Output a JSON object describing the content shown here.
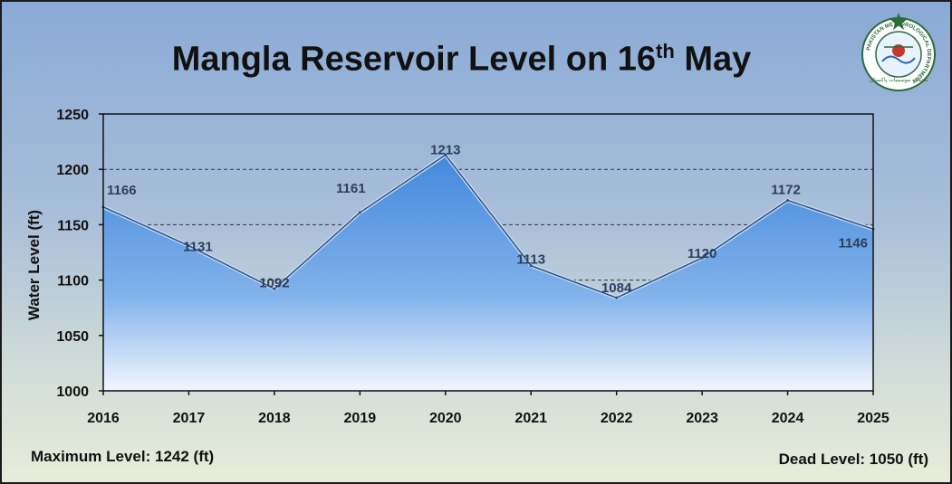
{
  "title": {
    "main": "Mangla Reservoir Level on 16",
    "sup": "th",
    "end": " May"
  },
  "logo": {
    "ring_text": "PAKISTAN METEOROLOGICAL DEPARTMENT",
    "urdu_text": "محکمہ موسمیات پاکستان"
  },
  "footer": {
    "max_level": "Maximum Level: 1242 (ft)",
    "dead_level": "Dead Level: 1050 (ft)"
  },
  "colors": {
    "area_top": "#3f86dc",
    "area_bottom": "#f4f8ff",
    "line": "#2b4f80",
    "label": "#2c3f5e"
  },
  "chart_data": {
    "type": "area",
    "title": "Mangla Reservoir Level on 16th May",
    "xlabel": "",
    "ylabel": "Water Level (ft)",
    "categories": [
      "2016",
      "2017",
      "2018",
      "2019",
      "2020",
      "2021",
      "2022",
      "2023",
      "2024",
      "2025"
    ],
    "values": [
      1166,
      1131,
      1092,
      1161,
      1213,
      1113,
      1084,
      1120,
      1172,
      1146
    ],
    "ylim": [
      1000,
      1250
    ],
    "yticks": [
      1000,
      1050,
      1100,
      1150,
      1200,
      1250
    ],
    "grid": "dashed horizontal at 1100, 1150, 1200"
  }
}
